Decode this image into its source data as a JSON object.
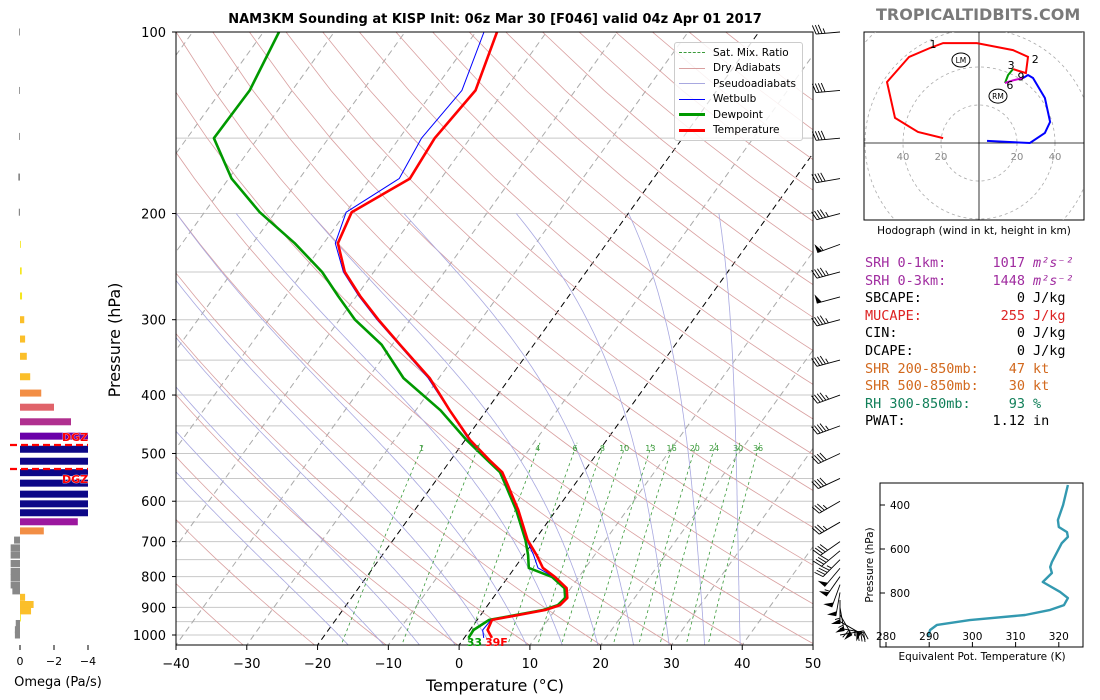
{
  "title": "NAM3KM Sounding at KISP Init: 06z Mar 30 [F046] valid 04z Apr 01 2017",
  "watermark": "TROPICALTIDBITS.COM",
  "colors": {
    "temperature": "#ff0000",
    "dewpoint": "#009900",
    "wetbulb": "#0000ff",
    "dry_adiabat": "#d9a0a0",
    "pseudoadiabat": "#a8a8e0",
    "mixing_ratio": "#3a9a3a",
    "theta_e": "#3399b0"
  },
  "legend": [
    "Sat. Mix. Ratio",
    "Dry Adiabats",
    "Pseudoadiabats",
    "Wetbulb",
    "Dewpoint",
    "Temperature"
  ],
  "chart_data": [
    {
      "type": "line",
      "name": "skew-t",
      "xlabel": "Temperature (°C)",
      "ylabel": "Pressure (hPa)",
      "xlim": [
        -40,
        50
      ],
      "ylim": [
        1050,
        100
      ],
      "x_ticks": [
        -40,
        -30,
        -20,
        -10,
        0,
        10,
        20,
        30,
        40,
        50
      ],
      "y_ticks": [
        100,
        200,
        300,
        400,
        500,
        600,
        700,
        800,
        900,
        1000
      ],
      "pressure": [
        100,
        125,
        150,
        175,
        199,
        224,
        250,
        274,
        300,
        330,
        375,
        424,
        475,
        513,
        537,
        564,
        586,
        620,
        696,
        737,
        774,
        801,
        836,
        868,
        892,
        909,
        944,
        981,
        1011
      ],
      "temperature": [
        -57,
        -54.1,
        -55,
        -54.4,
        -59.2,
        -58,
        -54.1,
        -49.5,
        -44.5,
        -38.9,
        -31.3,
        -25.2,
        -19.3,
        -14.5,
        -11.5,
        -9.4,
        -7.8,
        -5.4,
        -1.0,
        1.8,
        4.0,
        6.6,
        9.4,
        10.5,
        10.2,
        8.6,
        2.1,
        2.5,
        3.9
      ],
      "dewpoint": [
        -87.8,
        -86,
        -86.2,
        -79.6,
        -72.2,
        -64.1,
        -57.3,
        -52.6,
        -47.8,
        -41.5,
        -35,
        -26.5,
        -19.8,
        -14.8,
        -11.8,
        -9.7,
        -8.1,
        -5.7,
        -1.3,
        0.6,
        2.0,
        6.2,
        9.1,
        10.2,
        9.9,
        8.3,
        1.7,
        0.5,
        0.6
      ],
      "mixing_ratio_labels": [
        "1",
        "2",
        "4",
        "6",
        "8",
        "10",
        "13",
        "16",
        "20",
        "24",
        "30",
        "36"
      ],
      "surface_temp_label": "39F",
      "surface_dew_label": "33"
    },
    {
      "type": "line",
      "name": "hodograph",
      "caption": "Hodograph (wind in kt, height in km)",
      "ring_labels": [
        "40",
        "20",
        "20",
        "40"
      ],
      "segments": [
        {
          "layer": "0-3km",
          "color": "#ff0000",
          "uv": [
            [
              -18.9,
              2.6
            ],
            [
              -32.1,
              5.8
            ],
            [
              -44.2,
              13.2
            ],
            [
              -48.4,
              32.1
            ],
            [
              -36.8,
              45.3
            ],
            [
              -25.8,
              50
            ],
            [
              -18.9,
              52.6
            ],
            [
              -1.1,
              52.6
            ],
            [
              17.9,
              48.9
            ],
            [
              25.8,
              45.3
            ],
            [
              24.7,
              36.8
            ],
            [
              17.9,
              38.9
            ]
          ]
        },
        {
          "layer": "3-6km",
          "color": "#009900",
          "uv": [
            [
              17.9,
              38.9
            ],
            [
              15.3,
              35.8
            ],
            [
              13.7,
              31.6
            ]
          ]
        },
        {
          "layer": "6-9km",
          "color": "#cc00cc",
          "uv": [
            [
              13.7,
              31.6
            ],
            [
              18,
              33
            ],
            [
              23.2,
              34.2
            ]
          ]
        },
        {
          "layer": "9km+",
          "color": "#0000ff",
          "uv": [
            [
              23.2,
              34.2
            ],
            [
              25.8,
              35.8
            ],
            [
              28.4,
              34.2
            ],
            [
              34.7,
              23.7
            ],
            [
              37.4,
              11.1
            ],
            [
              34.7,
              5.3
            ],
            [
              26.8,
              0
            ],
            [
              4.2,
              1.1
            ]
          ]
        }
      ],
      "height_labels": [
        {
          "text": "1",
          "uv": [
            -25.8,
            50.5
          ]
        },
        {
          "text": "2",
          "uv": [
            28,
            42.6
          ]
        },
        {
          "text": "3",
          "uv": [
            15.3,
            39.5
          ]
        },
        {
          "text": "9",
          "uv": [
            20.5,
            33.5
          ]
        },
        {
          "text": "6",
          "uv": [
            14.7,
            28.9
          ]
        }
      ],
      "storm_motion": [
        {
          "text": "LM",
          "uv": [
            -9.5,
            43.7
          ]
        },
        {
          "text": "RM",
          "uv": [
            10,
            24.7
          ]
        }
      ]
    },
    {
      "type": "line",
      "name": "theta-e",
      "xlabel": "Equivalent Pot. Temperature (K)",
      "ylabel": "Pressure (hPa)",
      "xlim": [
        278,
        326
      ],
      "ylim": [
        1045,
        300
      ],
      "x_ticks": [
        "280",
        "290",
        "300",
        "310",
        "320"
      ],
      "y_ticks": [
        "400",
        "600",
        "800"
      ],
      "theta_e": [
        322.1,
        321.0,
        319.8,
        320.0,
        321.9,
        322.1,
        320.7,
        318.4,
        318.0,
        318.4,
        316.3,
        320.3,
        322.1,
        321.2,
        318.0,
        312.2,
        299.4,
        291.8,
        290.2,
        289.7
      ],
      "pressure": [
        309,
        400,
        468,
        500,
        523,
        545,
        573,
        659,
        682,
        709,
        750,
        795,
        823,
        855,
        877,
        900,
        923,
        945,
        968,
        1000
      ]
    },
    {
      "type": "bar",
      "name": "omega",
      "xlabel": "Omega (Pa/s)",
      "x_ticks": [
        "0",
        "−2",
        "−4"
      ],
      "xlim": [
        0.5,
        -4
      ],
      "pressure": [
        100,
        125,
        149,
        174,
        199,
        225,
        249,
        274,
        300,
        323,
        345,
        373,
        397,
        419,
        443,
        468,
        492,
        515,
        538,
        560,
        584,
        606,
        627,
        649,
        672,
        696,
        717,
        737,
        761,
        784,
        803,
        826,
        845,
        866,
        890,
        912,
        937,
        957,
        980,
        1000
      ],
      "omega": [
        0.05,
        0.05,
        0.05,
        0.1,
        0.07,
        -0.05,
        -0.1,
        -0.12,
        -0.25,
        -0.3,
        -0.4,
        -0.6,
        -1.25,
        -2.0,
        -3.0,
        -4.0,
        -4.0,
        -4.0,
        -4.0,
        -4.0,
        -4.0,
        -4.0,
        -4.0,
        -3.4,
        -1.4,
        0.35,
        0.55,
        0.55,
        0.55,
        0.55,
        0.55,
        0.55,
        0.45,
        -0.3,
        -0.8,
        -0.65,
        -0.05,
        0.25,
        0.3,
        0.3
      ],
      "dgz_label": "DGZ",
      "dgz_bounds_hPa": [
        488,
        535
      ]
    }
  ],
  "winds": {
    "pressure": [
      1000,
      975,
      950,
      925,
      900,
      875,
      850,
      825,
      800,
      775,
      750,
      725,
      700,
      650,
      600,
      550,
      500,
      450,
      400,
      350,
      300,
      275,
      250,
      225,
      200,
      175,
      150,
      125,
      100
    ],
    "speed_kt": [
      20,
      35,
      55,
      60,
      55,
      55,
      50,
      50,
      55,
      50,
      45,
      40,
      40,
      35,
      35,
      40,
      40,
      45,
      45,
      45,
      45,
      50,
      45,
      55,
      45,
      40,
      40,
      40,
      35
    ],
    "direction_deg": [
      80,
      100,
      120,
      150,
      170,
      180,
      190,
      200,
      215,
      220,
      225,
      230,
      235,
      240,
      240,
      245,
      245,
      250,
      250,
      255,
      255,
      255,
      255,
      250,
      255,
      260,
      265,
      265,
      265
    ]
  },
  "stats": [
    {
      "label": "SRH 0-1km:",
      "value": "1017",
      "unit": "m²s⁻²",
      "color": "#a02ca0",
      "italic": true
    },
    {
      "label": "SRH 0-3km:",
      "value": "1448",
      "unit": "m²s⁻²",
      "color": "#a02ca0",
      "italic": true
    },
    {
      "label": "SBCAPE:",
      "value": "0",
      "unit": "J/kg",
      "color": "#000000"
    },
    {
      "label": "MUCAPE:",
      "value": "255",
      "unit": "J/kg",
      "color": "#dd2222"
    },
    {
      "label": "CIN:",
      "value": "0",
      "unit": "J/kg",
      "color": "#000000"
    },
    {
      "label": "DCAPE:",
      "value": "0",
      "unit": "J/kg",
      "color": "#000000"
    },
    {
      "label": "SHR 200-850mb:",
      "value": "47",
      "unit": "kt",
      "color": "#d2691e"
    },
    {
      "label": "SHR 500-850mb:",
      "value": "30",
      "unit": "kt",
      "color": "#d2691e"
    },
    {
      "label": "RH 300-850mb:",
      "value": "93",
      "unit": "%",
      "color": "#12805a"
    },
    {
      "label": "PWAT:",
      "value": "1.12",
      "unit": "in",
      "color": "#000000"
    }
  ]
}
